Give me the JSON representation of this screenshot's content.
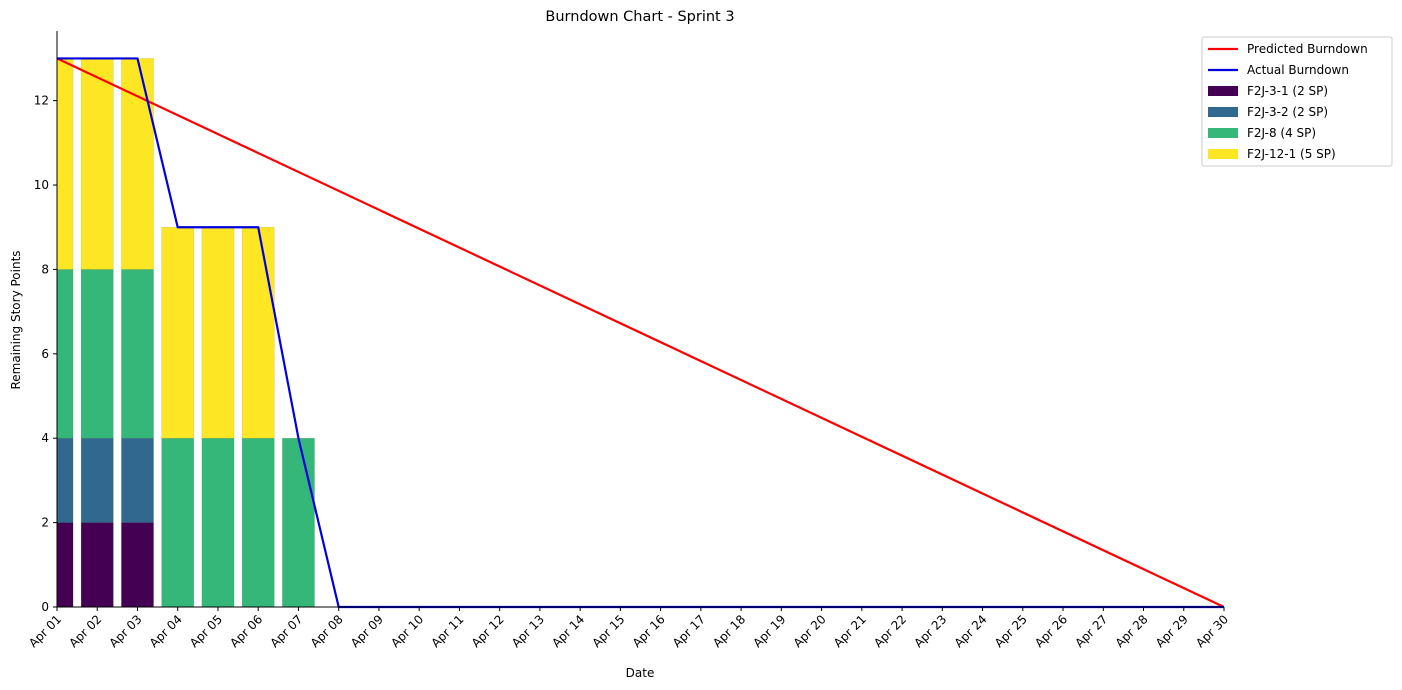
{
  "chart_data": {
    "type": "bar",
    "title": "Burndown Chart - Sprint 3",
    "xlabel": "Date",
    "ylabel": "Remaining Story Points",
    "ylim": [
      0,
      13.65
    ],
    "yticks": [
      "0",
      "2",
      "4",
      "6",
      "8",
      "10",
      "12"
    ],
    "grid": false,
    "legend_position": "top-right",
    "categories": [
      "Apr 01",
      "Apr 02",
      "Apr 03",
      "Apr 04",
      "Apr 05",
      "Apr 06",
      "Apr 07",
      "Apr 08",
      "Apr 09",
      "Apr 10",
      "Apr 11",
      "Apr 12",
      "Apr 13",
      "Apr 14",
      "Apr 15",
      "Apr 16",
      "Apr 17",
      "Apr 18",
      "Apr 19",
      "Apr 20",
      "Apr 21",
      "Apr 22",
      "Apr 23",
      "Apr 24",
      "Apr 25",
      "Apr 26",
      "Apr 27",
      "Apr 28",
      "Apr 29",
      "Apr 30"
    ],
    "stacked_series": [
      {
        "name": "F2J-3-1 (2 SP)",
        "color": "#440154",
        "values": [
          2,
          2,
          2,
          0,
          0,
          0,
          0,
          0
        ]
      },
      {
        "name": "F2J-3-2 (2 SP)",
        "color": "#31688e",
        "values": [
          2,
          2,
          2,
          0,
          0,
          0,
          0,
          0
        ]
      },
      {
        "name": "F2J-8 (4 SP)",
        "color": "#35b779",
        "values": [
          4,
          4,
          4,
          4,
          4,
          4,
          4,
          0
        ]
      },
      {
        "name": "F2J-12-1 (5 SP)",
        "color": "#fde725",
        "values": [
          5,
          5,
          5,
          5,
          5,
          5,
          0,
          0
        ]
      }
    ],
    "line_series": [
      {
        "name": "Predicted Burndown",
        "color": "#ff0000",
        "x": [
          "Apr 01",
          "Apr 30"
        ],
        "values": [
          13,
          0
        ]
      },
      {
        "name": "Actual Burndown",
        "color": "#0000e0",
        "x": [
          "Apr 01",
          "Apr 02",
          "Apr 03",
          "Apr 04",
          "Apr 05",
          "Apr 06",
          "Apr 07",
          "Apr 08",
          "Apr 30"
        ],
        "values": [
          13,
          13,
          13,
          9,
          9,
          9,
          4,
          0,
          0
        ]
      }
    ]
  }
}
